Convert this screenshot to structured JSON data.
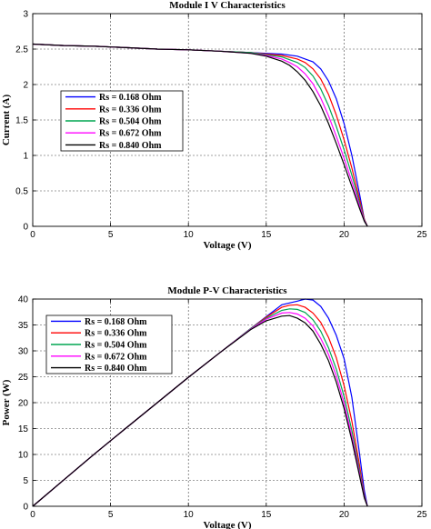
{
  "chart_data": [
    {
      "type": "line",
      "title": "Module I V Characteristics",
      "xlabel": "Voltage (V)",
      "ylabel": "Current (A)",
      "xlim": [
        0,
        25
      ],
      "ylim": [
        0,
        3
      ],
      "xticks": [
        "0",
        "5",
        "10",
        "15",
        "20",
        "25"
      ],
      "yticks": [
        "0",
        "0.5",
        "1",
        "1.5",
        "2",
        "2.5",
        "3"
      ],
      "grid": true,
      "legend_position": "middle-left",
      "series": [
        {
          "name": "Rs = 0.168 Ohm",
          "color": "#0000ff",
          "x": [
            0,
            2,
            4,
            6,
            8,
            10,
            12,
            14,
            15,
            16,
            17,
            18,
            18.5,
            19,
            19.5,
            20,
            20.5,
            21,
            21.3,
            21.5
          ],
          "y": [
            2.57,
            2.55,
            2.54,
            2.52,
            2.5,
            2.49,
            2.47,
            2.45,
            2.44,
            2.43,
            2.4,
            2.32,
            2.22,
            2.05,
            1.8,
            1.45,
            1.0,
            0.45,
            0.1,
            0
          ]
        },
        {
          "name": "Rs = 0.336 Ohm",
          "color": "#ff0000",
          "x": [
            0,
            2,
            4,
            6,
            8,
            10,
            12,
            14,
            15,
            16,
            17,
            17.5,
            18,
            18.5,
            19,
            19.5,
            20,
            20.5,
            21,
            21.3,
            21.5
          ],
          "y": [
            2.57,
            2.55,
            2.54,
            2.52,
            2.5,
            2.49,
            2.47,
            2.45,
            2.43,
            2.41,
            2.36,
            2.31,
            2.22,
            2.08,
            1.86,
            1.57,
            1.22,
            0.82,
            0.38,
            0.1,
            0
          ]
        },
        {
          "name": "Rs = 0.504 Ohm",
          "color": "#00a651",
          "x": [
            0,
            2,
            4,
            6,
            8,
            10,
            12,
            14,
            15,
            16,
            17,
            17.5,
            18,
            18.5,
            19,
            19.5,
            20,
            20.5,
            21,
            21.3,
            21.5
          ],
          "y": [
            2.57,
            2.55,
            2.54,
            2.52,
            2.5,
            2.49,
            2.47,
            2.45,
            2.42,
            2.39,
            2.31,
            2.24,
            2.12,
            1.94,
            1.7,
            1.41,
            1.08,
            0.72,
            0.33,
            0.09,
            0
          ]
        },
        {
          "name": "Rs = 0.672 Ohm",
          "color": "#ff00ff",
          "x": [
            0,
            2,
            4,
            6,
            8,
            10,
            12,
            14,
            15,
            16,
            16.5,
            17,
            17.5,
            18,
            18.5,
            19,
            19.5,
            20,
            20.5,
            21,
            21.3,
            21.5
          ],
          "y": [
            2.57,
            2.55,
            2.54,
            2.52,
            2.5,
            2.49,
            2.47,
            2.44,
            2.41,
            2.36,
            2.31,
            2.25,
            2.15,
            2.01,
            1.81,
            1.56,
            1.27,
            0.96,
            0.63,
            0.29,
            0.08,
            0
          ]
        },
        {
          "name": "Rs = 0.840 Ohm",
          "color": "#000000",
          "x": [
            0,
            2,
            4,
            6,
            8,
            10,
            12,
            14,
            15,
            16,
            16.5,
            17,
            17.5,
            18,
            18.5,
            19,
            19.5,
            20,
            20.5,
            21,
            21.3,
            21.5
          ],
          "y": [
            2.57,
            2.55,
            2.54,
            2.52,
            2.5,
            2.49,
            2.47,
            2.44,
            2.4,
            2.33,
            2.27,
            2.18,
            2.06,
            1.9,
            1.7,
            1.45,
            1.17,
            0.87,
            0.56,
            0.25,
            0.07,
            0
          ]
        }
      ]
    },
    {
      "type": "line",
      "title": "Module P-V Characteristics",
      "xlabel": "Voltage (V)",
      "ylabel": "Power (W)",
      "xlim": [
        0,
        25
      ],
      "ylim": [
        0,
        40
      ],
      "xticks": [
        "0",
        "5",
        "10",
        "15",
        "20",
        "25"
      ],
      "yticks": [
        "0",
        "5",
        "10",
        "15",
        "20",
        "25",
        "30",
        "35",
        "40"
      ],
      "grid": true,
      "legend_position": "top-left",
      "series": [
        {
          "name": "Rs = 0.168 Ohm",
          "color": "#0000ff",
          "x": [
            0,
            2,
            4,
            6,
            8,
            10,
            12,
            14,
            15,
            16,
            17,
            17.5,
            18,
            18.5,
            19,
            19.5,
            20,
            20.5,
            21,
            21.3,
            21.5
          ],
          "y": [
            0,
            5.1,
            10.2,
            15.1,
            20.0,
            24.9,
            29.6,
            34.3,
            36.6,
            38.9,
            39.6,
            40.0,
            39.8,
            38.6,
            36.3,
            33.0,
            28.5,
            21.0,
            10.0,
            3.0,
            0
          ]
        },
        {
          "name": "Rs = 0.336 Ohm",
          "color": "#ff0000",
          "x": [
            0,
            2,
            4,
            6,
            8,
            10,
            12,
            14,
            15,
            16,
            16.5,
            17,
            17.5,
            18,
            18.5,
            19,
            19.5,
            20,
            20.5,
            21,
            21.3,
            21.5
          ],
          "y": [
            0,
            5.1,
            10.2,
            15.1,
            20.0,
            24.9,
            29.6,
            34.3,
            36.5,
            38.4,
            38.8,
            38.9,
            38.4,
            37.3,
            35.5,
            32.6,
            28.7,
            23.3,
            16.4,
            7.8,
            2.1,
            0
          ]
        },
        {
          "name": "Rs = 0.504 Ohm",
          "color": "#00a651",
          "x": [
            0,
            2,
            4,
            6,
            8,
            10,
            12,
            14,
            15,
            16,
            16.5,
            17,
            17.5,
            18,
            18.5,
            19,
            19.5,
            20,
            20.5,
            21,
            21.3,
            21.5
          ],
          "y": [
            0,
            5.1,
            10.2,
            15.1,
            20.0,
            24.9,
            29.6,
            34.3,
            36.3,
            37.8,
            38.1,
            38.0,
            37.4,
            36.0,
            33.8,
            30.6,
            26.5,
            21.2,
            14.6,
            6.9,
            1.9,
            0
          ]
        },
        {
          "name": "Rs = 0.672 Ohm",
          "color": "#ff00ff",
          "x": [
            0,
            2,
            4,
            6,
            8,
            10,
            12,
            14,
            15,
            16,
            16.5,
            17,
            17.5,
            18,
            18.5,
            19,
            19.5,
            20,
            20.5,
            21,
            21.3,
            21.5
          ],
          "y": [
            0,
            5.1,
            10.2,
            15.1,
            20.0,
            24.9,
            29.6,
            34.2,
            36.1,
            37.3,
            37.4,
            37.1,
            36.3,
            34.8,
            32.4,
            29.3,
            25.2,
            19.9,
            13.5,
            6.3,
            1.7,
            0
          ]
        },
        {
          "name": "Rs = 0.840 Ohm",
          "color": "#000000",
          "x": [
            0,
            2,
            4,
            6,
            8,
            10,
            12,
            14,
            15,
            16,
            16.5,
            17,
            17.5,
            18,
            18.5,
            19,
            19.5,
            20,
            20.5,
            21,
            21.3,
            21.5
          ],
          "y": [
            0,
            5.1,
            10.2,
            15.1,
            20.0,
            24.9,
            29.6,
            34.1,
            35.8,
            36.7,
            36.8,
            36.3,
            35.4,
            33.8,
            31.3,
            28.1,
            24.0,
            18.9,
            12.7,
            5.8,
            1.6,
            0
          ]
        }
      ]
    }
  ]
}
